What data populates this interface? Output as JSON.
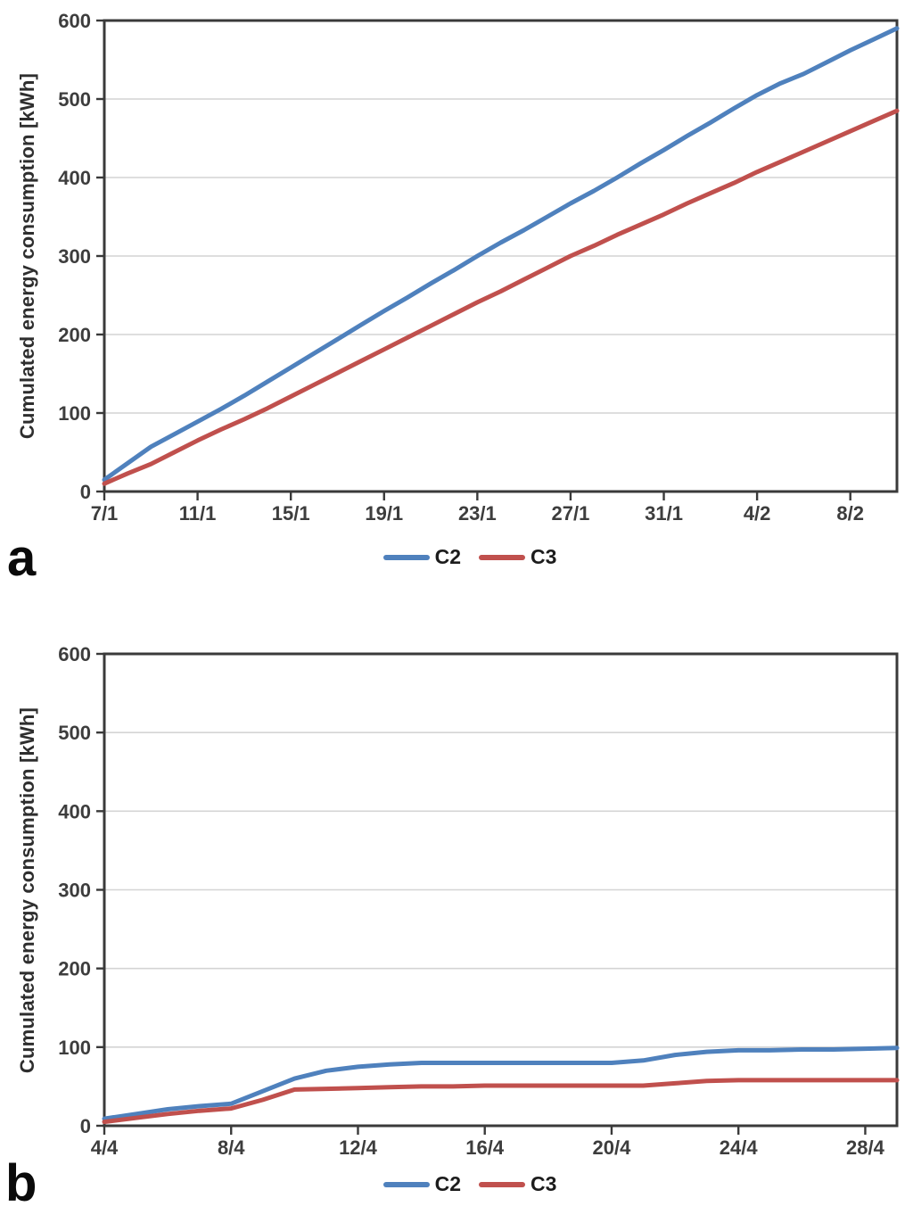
{
  "chart_data": [
    {
      "type": "line",
      "panel_label": "a",
      "title": "",
      "xlabel": "",
      "ylabel": "Cumulated energy consumption [kWh]",
      "ylim": [
        0,
        600
      ],
      "ytick_interval": 100,
      "ytick_labels": [
        "0",
        "100",
        "200",
        "300",
        "400",
        "500",
        "600"
      ],
      "grid": true,
      "legend_position": "bottom-center",
      "x": [
        "7/1",
        "8/1",
        "9/1",
        "10/1",
        "11/1",
        "12/1",
        "13/1",
        "14/1",
        "15/1",
        "16/1",
        "17/1",
        "18/1",
        "19/1",
        "20/1",
        "21/1",
        "22/1",
        "23/1",
        "24/1",
        "25/1",
        "26/1",
        "27/1",
        "28/1",
        "29/1",
        "30/1",
        "31/1",
        "1/2",
        "2/2",
        "3/2",
        "4/2",
        "5/2",
        "6/2",
        "7/2",
        "8/2",
        "9/2",
        "10/2"
      ],
      "xtick_labels": [
        "7/1",
        "11/1",
        "15/1",
        "19/1",
        "23/1",
        "27/1",
        "31/1",
        "4/2",
        "8/2"
      ],
      "series": [
        {
          "name": "C2",
          "color": "#4F81BD",
          "values": [
            15,
            36,
            57,
            73,
            89,
            105,
            122,
            140,
            158,
            176,
            194,
            212,
            230,
            247,
            265,
            282,
            300,
            317,
            333,
            350,
            367,
            383,
            400,
            418,
            435,
            453,
            470,
            488,
            505,
            520,
            532,
            547,
            562,
            576,
            590
          ]
        },
        {
          "name": "C3",
          "color": "#C0504D",
          "values": [
            10,
            23,
            35,
            50,
            65,
            79,
            92,
            106,
            121,
            136,
            151,
            166,
            181,
            196,
            211,
            226,
            241,
            255,
            270,
            285,
            300,
            313,
            327,
            340,
            353,
            367,
            380,
            393,
            407,
            420,
            433,
            446,
            459,
            472,
            485
          ]
        }
      ]
    },
    {
      "type": "line",
      "panel_label": "b",
      "title": "",
      "xlabel": "",
      "ylabel": "Cumulated energy consumption [kWh]",
      "ylim": [
        0,
        600
      ],
      "ytick_interval": 100,
      "ytick_labels": [
        "0",
        "100",
        "200",
        "300",
        "400",
        "500",
        "600"
      ],
      "grid": true,
      "legend_position": "bottom-center",
      "x": [
        "4/4",
        "5/4",
        "6/4",
        "7/4",
        "8/4",
        "9/4",
        "10/4",
        "11/4",
        "12/4",
        "13/4",
        "14/4",
        "15/4",
        "16/4",
        "17/4",
        "18/4",
        "19/4",
        "20/4",
        "21/4",
        "22/4",
        "23/4",
        "24/4",
        "25/4",
        "26/4",
        "27/4",
        "28/4",
        "29/4"
      ],
      "xtick_labels": [
        "4/4",
        "8/4",
        "12/4",
        "16/4",
        "20/4",
        "24/4",
        "28/4"
      ],
      "series": [
        {
          "name": "C2",
          "color": "#4F81BD",
          "values": [
            9,
            15,
            21,
            25,
            28,
            44,
            60,
            70,
            75,
            78,
            80,
            80,
            80,
            80,
            80,
            80,
            80,
            83,
            90,
            94,
            96,
            96,
            97,
            97,
            98,
            99
          ]
        },
        {
          "name": "C3",
          "color": "#C0504D",
          "values": [
            5,
            10,
            15,
            19,
            22,
            33,
            46,
            47,
            48,
            49,
            50,
            50,
            51,
            51,
            51,
            51,
            51,
            51,
            54,
            57,
            58,
            58,
            58,
            58,
            58,
            58
          ]
        }
      ]
    }
  ]
}
